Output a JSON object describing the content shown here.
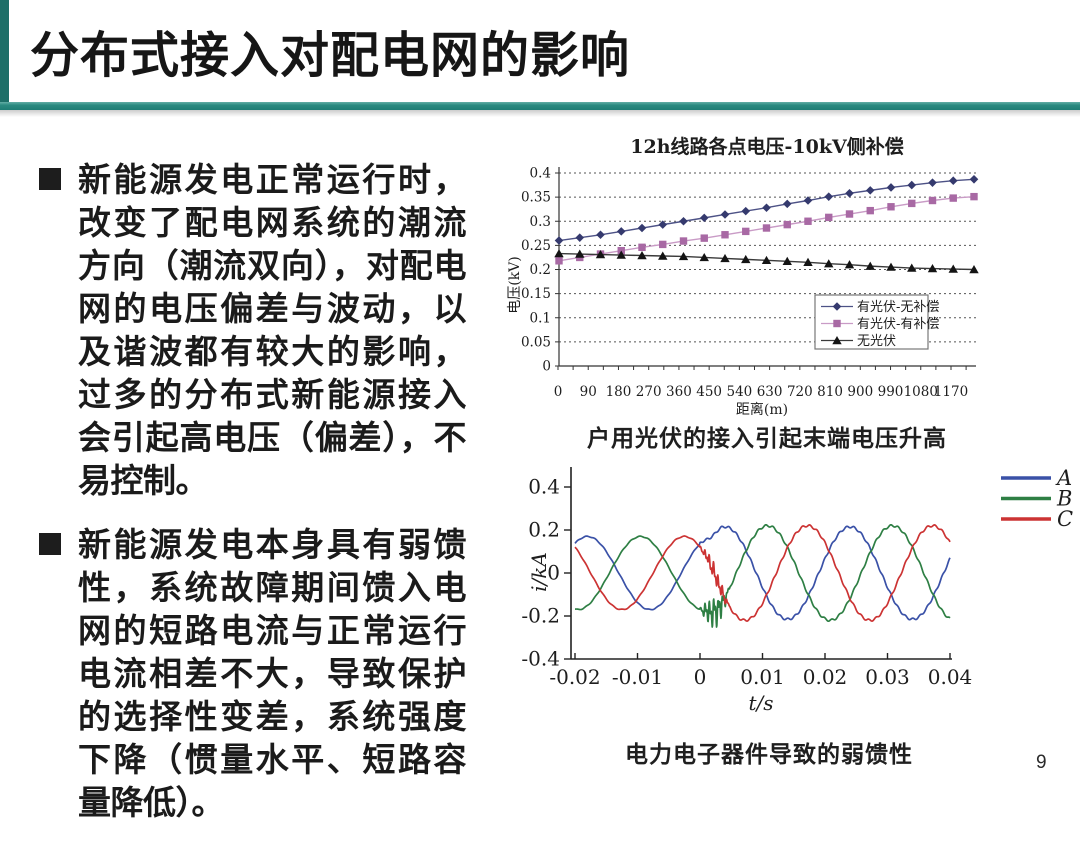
{
  "slide": {
    "title": "分布式接入对配电网的影响",
    "page_number": "9",
    "accent_color": "#2a8a80",
    "accent_dark": "#1d6f68",
    "text_color": "#1b1b1b"
  },
  "bullets": [
    {
      "text": "新能源发电正常运行时，改变了配电网系统的潮流方向（潮流双向），对配电网的电压偏差与波动，以及谐波都有较大的影响，过多的分布式新能源接入会引起高电压（偏差），不易控制。"
    },
    {
      "text": "新能源发电本身具有弱馈性，系统故障期间馈入电网的短路电流与正常运行电流相差不大，导致保护的选择性变差，系统强度下降（惯量水平、短路容量降低）。"
    }
  ],
  "figure1": {
    "caption": "户用光伏的接入引起末端电压升高"
  },
  "figure2": {
    "caption": "电力电子器件导致的弱馈性"
  },
  "chart_data": [
    {
      "type": "line",
      "title": "12h线路各点电压-10kV侧补偿",
      "xlabel": "距离(m)",
      "ylabel": "电压(kV)",
      "x_ticks": [
        0,
        90,
        180,
        270,
        360,
        450,
        540,
        630,
        720,
        810,
        900,
        990,
        1080,
        1170
      ],
      "ylim": [
        0,
        0.4
      ],
      "y_tick_step": 0.05,
      "grid": "dashed-horizontal",
      "legend_position": "inside-right",
      "x_values_m": [
        0,
        60,
        120,
        180,
        240,
        300,
        360,
        420,
        480,
        540,
        600,
        660,
        720,
        780,
        840,
        900,
        960,
        1020,
        1080,
        1140,
        1200
      ],
      "series": [
        {
          "name": "有光伏-无补偿",
          "marker": "diamond",
          "color": "#353a6e",
          "line_color": "#4d5286",
          "values": [
            0.26,
            0.266,
            0.272,
            0.279,
            0.286,
            0.293,
            0.3,
            0.307,
            0.314,
            0.321,
            0.328,
            0.336,
            0.343,
            0.351,
            0.358,
            0.364,
            0.37,
            0.375,
            0.38,
            0.384,
            0.387
          ]
        },
        {
          "name": "有光伏-有补偿",
          "marker": "square",
          "color": "#a869a4",
          "line_color": "#c99bc6",
          "values": [
            0.218,
            0.225,
            0.232,
            0.239,
            0.246,
            0.252,
            0.259,
            0.265,
            0.272,
            0.279,
            0.286,
            0.293,
            0.3,
            0.308,
            0.315,
            0.322,
            0.33,
            0.337,
            0.343,
            0.348,
            0.351
          ]
        },
        {
          "name": "无光伏",
          "marker": "triangle",
          "color": "#141414",
          "line_color": "#3a3a3a",
          "values": [
            0.233,
            0.232,
            0.231,
            0.23,
            0.229,
            0.228,
            0.227,
            0.225,
            0.223,
            0.221,
            0.219,
            0.217,
            0.215,
            0.212,
            0.21,
            0.207,
            0.205,
            0.203,
            0.202,
            0.201,
            0.2
          ]
        }
      ]
    },
    {
      "type": "line",
      "title": "",
      "xlabel": "t/s",
      "ylabel": "i/kA",
      "xlim": [
        -0.02,
        0.04
      ],
      "ylim": [
        -0.4,
        0.4
      ],
      "x_ticks": [
        -0.02,
        -0.01,
        0,
        0.01,
        0.02,
        0.03,
        0.04
      ],
      "y_ticks": [
        0.4,
        0.2,
        0,
        -0.2,
        -0.4
      ],
      "legend_position": "top-right",
      "period_s": 0.02,
      "fault_time_s": 0,
      "fault_blend_s": 0.0035,
      "series": [
        {
          "name": "A",
          "color": "#3a51a7",
          "amp_pre": 0.17,
          "amp_post": 0.215,
          "peak_pre": -0.018,
          "peak_post": 0.004,
          "fault_noise": 0
        },
        {
          "name": "B",
          "color": "#2e7f44",
          "amp_pre": 0.17,
          "amp_post": 0.22,
          "peak_pre": -0.0095,
          "peak_post": 0.0108,
          "fault_noise": 0.055
        },
        {
          "name": "C",
          "color": "#cc3333",
          "amp_pre": 0.17,
          "amp_post": 0.22,
          "peak_pre": -0.0025,
          "peak_post": 0.0172,
          "fault_noise": 0.03
        }
      ]
    }
  ]
}
